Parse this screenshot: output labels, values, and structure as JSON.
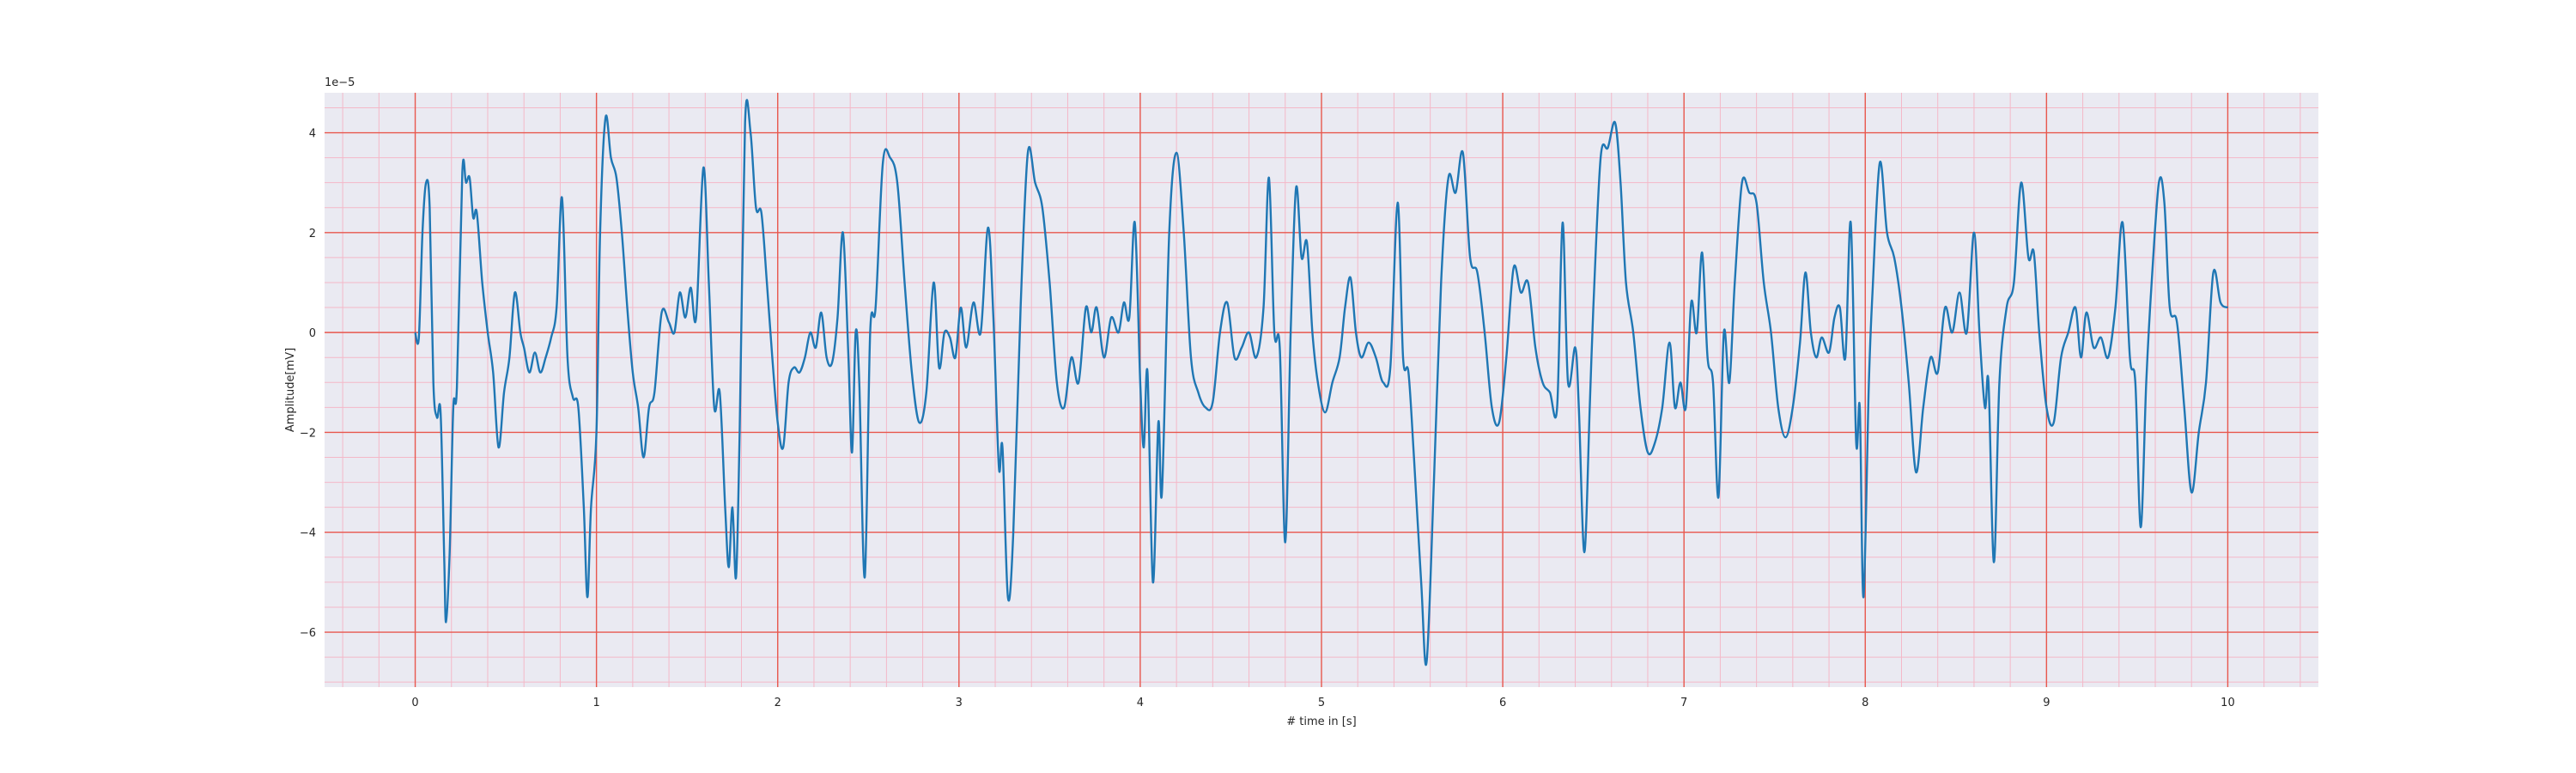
{
  "chart_data": {
    "type": "line",
    "title": "",
    "xlabel": "# time in [s]",
    "ylabel": "Amplitude[mV]",
    "y_offset_text": "1e−5",
    "y_scale": 1e-05,
    "xlim": [
      -0.5,
      10.5
    ],
    "ylim": [
      -7.1,
      4.8
    ],
    "x_ticks": [
      0,
      1,
      2,
      3,
      4,
      5,
      6,
      7,
      8,
      9,
      10
    ],
    "y_ticks": [
      -6,
      -4,
      -2,
      0,
      2,
      4
    ],
    "major_grid": {
      "on": true,
      "x_step": 1,
      "y_step": 2,
      "color": "#e8584e"
    },
    "minor_grid": {
      "on": true,
      "x_step": 0.2,
      "y_step": 0.5,
      "color": "#f4b8c8"
    },
    "background": "#eaeaf2",
    "series": [
      {
        "color": "#1f77b4",
        "values_units": "×1e-5 mV",
        "points": [
          [
            0.0,
            0.0
          ],
          [
            0.02,
            -0.1
          ],
          [
            0.04,
            2.0
          ],
          [
            0.06,
            3.0
          ],
          [
            0.08,
            2.5
          ],
          [
            0.1,
            -1.0
          ],
          [
            0.12,
            -1.7
          ],
          [
            0.14,
            -1.6
          ],
          [
            0.16,
            -4.5
          ],
          [
            0.17,
            -5.8
          ],
          [
            0.19,
            -4.4
          ],
          [
            0.21,
            -1.5
          ],
          [
            0.23,
            -1.1
          ],
          [
            0.26,
            3.2
          ],
          [
            0.28,
            3.0
          ],
          [
            0.3,
            3.1
          ],
          [
            0.32,
            2.3
          ],
          [
            0.34,
            2.4
          ],
          [
            0.37,
            1.0
          ],
          [
            0.4,
            0.0
          ],
          [
            0.43,
            -0.8
          ],
          [
            0.46,
            -2.3
          ],
          [
            0.49,
            -1.2
          ],
          [
            0.52,
            -0.5
          ],
          [
            0.55,
            0.8
          ],
          [
            0.58,
            0.0
          ],
          [
            0.6,
            -0.3
          ],
          [
            0.63,
            -0.8
          ],
          [
            0.66,
            -0.4
          ],
          [
            0.69,
            -0.8
          ],
          [
            0.72,
            -0.5
          ],
          [
            0.75,
            -0.1
          ],
          [
            0.78,
            0.5
          ],
          [
            0.81,
            2.7
          ],
          [
            0.84,
            -0.5
          ],
          [
            0.87,
            -1.3
          ],
          [
            0.9,
            -1.5
          ],
          [
            0.93,
            -3.5
          ],
          [
            0.95,
            -5.3
          ],
          [
            0.97,
            -3.5
          ],
          [
            1.0,
            -2.0
          ],
          [
            1.02,
            2.0
          ],
          [
            1.05,
            4.3
          ],
          [
            1.08,
            3.5
          ],
          [
            1.11,
            3.1
          ],
          [
            1.14,
            2.0
          ],
          [
            1.17,
            0.5
          ],
          [
            1.2,
            -0.8
          ],
          [
            1.23,
            -1.5
          ],
          [
            1.26,
            -2.5
          ],
          [
            1.29,
            -1.5
          ],
          [
            1.32,
            -1.2
          ],
          [
            1.36,
            0.4
          ],
          [
            1.4,
            0.2
          ],
          [
            1.43,
            0.0
          ],
          [
            1.46,
            0.8
          ],
          [
            1.49,
            0.3
          ],
          [
            1.52,
            0.9
          ],
          [
            1.55,
            0.3
          ],
          [
            1.59,
            3.3
          ],
          [
            1.62,
            1.0
          ],
          [
            1.65,
            -1.5
          ],
          [
            1.68,
            -1.2
          ],
          [
            1.71,
            -3.5
          ],
          [
            1.73,
            -4.7
          ],
          [
            1.75,
            -3.5
          ],
          [
            1.77,
            -4.9
          ],
          [
            1.79,
            -2.0
          ],
          [
            1.82,
            4.2
          ],
          [
            1.85,
            4.0
          ],
          [
            1.88,
            2.5
          ],
          [
            1.91,
            2.4
          ],
          [
            1.94,
            1.0
          ],
          [
            1.97,
            -0.5
          ],
          [
            2.0,
            -1.8
          ],
          [
            2.03,
            -2.3
          ],
          [
            2.06,
            -1.0
          ],
          [
            2.09,
            -0.7
          ],
          [
            2.12,
            -0.8
          ],
          [
            2.15,
            -0.5
          ],
          [
            2.18,
            0.0
          ],
          [
            2.21,
            -0.3
          ],
          [
            2.24,
            0.4
          ],
          [
            2.27,
            -0.5
          ],
          [
            2.3,
            -0.6
          ],
          [
            2.33,
            0.3
          ],
          [
            2.36,
            2.0
          ],
          [
            2.39,
            -0.5
          ],
          [
            2.41,
            -2.4
          ],
          [
            2.43,
            0.0
          ],
          [
            2.45,
            -1.0
          ],
          [
            2.48,
            -4.9
          ],
          [
            2.51,
            0.0
          ],
          [
            2.54,
            0.5
          ],
          [
            2.58,
            3.4
          ],
          [
            2.62,
            3.5
          ],
          [
            2.66,
            3.0
          ],
          [
            2.7,
            1.0
          ],
          [
            2.74,
            -0.8
          ],
          [
            2.78,
            -1.8
          ],
          [
            2.82,
            -1.2
          ],
          [
            2.86,
            1.0
          ],
          [
            2.89,
            -0.7
          ],
          [
            2.92,
            0.0
          ],
          [
            2.95,
            -0.1
          ],
          [
            2.98,
            -0.5
          ],
          [
            3.01,
            0.5
          ],
          [
            3.04,
            -0.3
          ],
          [
            3.08,
            0.6
          ],
          [
            3.12,
            0.0
          ],
          [
            3.16,
            2.1
          ],
          [
            3.19,
            0.3
          ],
          [
            3.22,
            -2.7
          ],
          [
            3.24,
            -2.3
          ],
          [
            3.27,
            -5.3
          ],
          [
            3.3,
            -4.0
          ],
          [
            3.34,
            0.5
          ],
          [
            3.38,
            3.6
          ],
          [
            3.42,
            3.0
          ],
          [
            3.46,
            2.5
          ],
          [
            3.5,
            1.0
          ],
          [
            3.54,
            -1.0
          ],
          [
            3.58,
            -1.5
          ],
          [
            3.62,
            -0.5
          ],
          [
            3.66,
            -1.0
          ],
          [
            3.7,
            0.5
          ],
          [
            3.73,
            0.0
          ],
          [
            3.76,
            0.5
          ],
          [
            3.8,
            -0.5
          ],
          [
            3.84,
            0.3
          ],
          [
            3.88,
            0.0
          ],
          [
            3.91,
            0.6
          ],
          [
            3.94,
            0.3
          ],
          [
            3.97,
            2.2
          ],
          [
            4.0,
            -1.0
          ],
          [
            4.02,
            -2.3
          ],
          [
            4.04,
            -0.8
          ],
          [
            4.07,
            -5.0
          ],
          [
            4.1,
            -1.8
          ],
          [
            4.12,
            -3.2
          ],
          [
            4.16,
            2.0
          ],
          [
            4.2,
            3.6
          ],
          [
            4.24,
            2.0
          ],
          [
            4.28,
            -0.5
          ],
          [
            4.32,
            -1.2
          ],
          [
            4.36,
            -1.5
          ],
          [
            4.4,
            -1.4
          ],
          [
            4.44,
            0.0
          ],
          [
            4.48,
            0.6
          ],
          [
            4.52,
            -0.5
          ],
          [
            4.56,
            -0.3
          ],
          [
            4.6,
            0.0
          ],
          [
            4.64,
            -0.5
          ],
          [
            4.68,
            0.5
          ],
          [
            4.71,
            3.1
          ],
          [
            4.74,
            0.0
          ],
          [
            4.77,
            -0.3
          ],
          [
            4.8,
            -4.2
          ],
          [
            4.83,
            0.0
          ],
          [
            4.86,
            2.9
          ],
          [
            4.89,
            1.5
          ],
          [
            4.92,
            1.8
          ],
          [
            4.95,
            0.0
          ],
          [
            4.98,
            -1.0
          ],
          [
            5.02,
            -1.6
          ],
          [
            5.06,
            -1.0
          ],
          [
            5.1,
            -0.5
          ],
          [
            5.13,
            0.5
          ],
          [
            5.16,
            1.1
          ],
          [
            5.19,
            0.0
          ],
          [
            5.22,
            -0.5
          ],
          [
            5.26,
            -0.2
          ],
          [
            5.3,
            -0.5
          ],
          [
            5.34,
            -1.0
          ],
          [
            5.38,
            -0.7
          ],
          [
            5.42,
            2.6
          ],
          [
            5.45,
            -0.5
          ],
          [
            5.48,
            -0.8
          ],
          [
            5.51,
            -2.5
          ],
          [
            5.55,
            -5.0
          ],
          [
            5.58,
            -6.6
          ],
          [
            5.62,
            -3.0
          ],
          [
            5.66,
            1.0
          ],
          [
            5.7,
            3.1
          ],
          [
            5.74,
            2.8
          ],
          [
            5.78,
            3.6
          ],
          [
            5.82,
            1.5
          ],
          [
            5.86,
            1.2
          ],
          [
            5.9,
            0.0
          ],
          [
            5.94,
            -1.5
          ],
          [
            5.98,
            -1.8
          ],
          [
            6.02,
            -0.5
          ],
          [
            6.06,
            1.3
          ],
          [
            6.1,
            0.8
          ],
          [
            6.14,
            1.0
          ],
          [
            6.18,
            -0.3
          ],
          [
            6.22,
            -1.0
          ],
          [
            6.26,
            -1.2
          ],
          [
            6.3,
            -1.5
          ],
          [
            6.33,
            2.2
          ],
          [
            6.36,
            -1.0
          ],
          [
            6.4,
            -0.3
          ],
          [
            6.42,
            -1.5
          ],
          [
            6.45,
            -4.4
          ],
          [
            6.48,
            -1.5
          ],
          [
            6.5,
            0.5
          ],
          [
            6.54,
            3.5
          ],
          [
            6.58,
            3.7
          ],
          [
            6.62,
            4.2
          ],
          [
            6.65,
            3.0
          ],
          [
            6.68,
            1.0
          ],
          [
            6.72,
            0.0
          ],
          [
            6.76,
            -1.5
          ],
          [
            6.8,
            -2.4
          ],
          [
            6.84,
            -2.2
          ],
          [
            6.88,
            -1.5
          ],
          [
            6.92,
            -0.2
          ],
          [
            6.95,
            -1.5
          ],
          [
            6.98,
            -1.0
          ],
          [
            7.01,
            -1.5
          ],
          [
            7.04,
            0.6
          ],
          [
            7.07,
            0.0
          ],
          [
            7.1,
            1.6
          ],
          [
            7.13,
            -0.5
          ],
          [
            7.16,
            -1.0
          ],
          [
            7.19,
            -3.3
          ],
          [
            7.22,
            0.0
          ],
          [
            7.25,
            -1.0
          ],
          [
            7.28,
            1.0
          ],
          [
            7.32,
            3.0
          ],
          [
            7.36,
            2.8
          ],
          [
            7.4,
            2.6
          ],
          [
            7.44,
            1.0
          ],
          [
            7.48,
            0.0
          ],
          [
            7.52,
            -1.5
          ],
          [
            7.56,
            -2.1
          ],
          [
            7.6,
            -1.5
          ],
          [
            7.64,
            -0.2
          ],
          [
            7.67,
            1.2
          ],
          [
            7.7,
            0.0
          ],
          [
            7.73,
            -0.5
          ],
          [
            7.76,
            -0.1
          ],
          [
            7.8,
            -0.4
          ],
          [
            7.83,
            0.3
          ],
          [
            7.86,
            0.5
          ],
          [
            7.89,
            -0.5
          ],
          [
            7.92,
            2.2
          ],
          [
            7.95,
            -2.2
          ],
          [
            7.97,
            -1.5
          ],
          [
            7.99,
            -5.3
          ],
          [
            8.02,
            -1.0
          ],
          [
            8.04,
            0.8
          ],
          [
            8.08,
            3.4
          ],
          [
            8.12,
            2.0
          ],
          [
            8.16,
            1.5
          ],
          [
            8.2,
            0.5
          ],
          [
            8.24,
            -1.0
          ],
          [
            8.28,
            -2.8
          ],
          [
            8.32,
            -1.5
          ],
          [
            8.36,
            -0.5
          ],
          [
            8.4,
            -0.8
          ],
          [
            8.44,
            0.5
          ],
          [
            8.48,
            0.0
          ],
          [
            8.52,
            0.8
          ],
          [
            8.56,
            0.0
          ],
          [
            8.6,
            2.0
          ],
          [
            8.63,
            0.0
          ],
          [
            8.66,
            -1.5
          ],
          [
            8.68,
            -1.0
          ],
          [
            8.71,
            -4.6
          ],
          [
            8.74,
            -1.0
          ],
          [
            8.78,
            0.5
          ],
          [
            8.82,
            1.0
          ],
          [
            8.86,
            3.0
          ],
          [
            8.9,
            1.5
          ],
          [
            8.93,
            1.6
          ],
          [
            8.96,
            0.0
          ],
          [
            9.0,
            -1.5
          ],
          [
            9.04,
            -1.8
          ],
          [
            9.08,
            -0.5
          ],
          [
            9.12,
            0.0
          ],
          [
            9.16,
            0.5
          ],
          [
            9.19,
            -0.5
          ],
          [
            9.22,
            0.4
          ],
          [
            9.26,
            -0.3
          ],
          [
            9.3,
            -0.1
          ],
          [
            9.34,
            -0.5
          ],
          [
            9.38,
            0.5
          ],
          [
            9.42,
            2.2
          ],
          [
            9.46,
            -0.5
          ],
          [
            9.49,
            -1.0
          ],
          [
            9.52,
            -3.9
          ],
          [
            9.55,
            -1.0
          ],
          [
            9.58,
            1.0
          ],
          [
            9.62,
            3.0
          ],
          [
            9.65,
            2.6
          ],
          [
            9.68,
            0.5
          ],
          [
            9.72,
            0.2
          ],
          [
            9.76,
            -1.5
          ],
          [
            9.8,
            -3.2
          ],
          [
            9.84,
            -2.0
          ],
          [
            9.88,
            -1.0
          ],
          [
            9.92,
            1.2
          ],
          [
            9.96,
            0.6
          ],
          [
            10.0,
            0.5
          ]
        ]
      }
    ]
  }
}
